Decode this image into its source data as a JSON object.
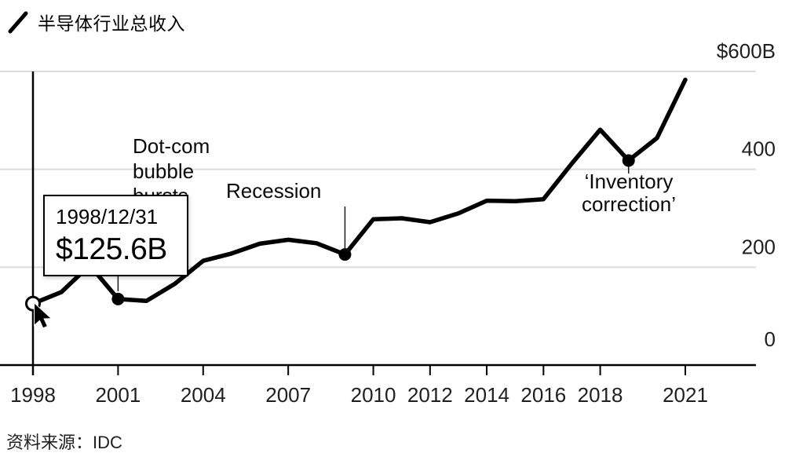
{
  "header": {
    "title": "半导体行业总收入"
  },
  "source": {
    "label": "资料来源：IDC"
  },
  "tooltip": {
    "date": "1998/12/31",
    "value": "$125.6B"
  },
  "chart_data": {
    "type": "line",
    "title": "半导体行业总收入",
    "legend_position": "top-left",
    "grid": true,
    "series": [
      {
        "name": "半导体行业总收入",
        "x": [
          1998,
          1999,
          2000,
          2001,
          2002,
          2003,
          2004,
          2005,
          2006,
          2007,
          2008,
          2009,
          2010,
          2011,
          2012,
          2013,
          2014,
          2015,
          2016,
          2017,
          2018,
          2019,
          2020,
          2021
        ],
        "values": [
          125.6,
          149,
          204,
          135,
          131,
          166,
          213,
          228,
          248,
          256,
          249,
          226,
          298,
          300,
          292,
          310,
          336,
          335,
          339,
          412,
          481,
          418,
          464,
          583
        ]
      }
    ],
    "x_axis": {
      "ticks": [
        1998,
        2001,
        2004,
        2007,
        2010,
        2012,
        2014,
        2016,
        2018,
        2021
      ]
    },
    "y_axis": {
      "min": 0,
      "max": 600,
      "ticks": [
        {
          "value": 600,
          "label": "$600B"
        },
        {
          "value": 400,
          "label": "400"
        },
        {
          "value": 200,
          "label": "200"
        },
        {
          "value": 0,
          "label": "0"
        }
      ]
    },
    "annotations": [
      {
        "id": "dotcom",
        "year": 2001,
        "value": 135,
        "lines": [
          "Dot-com",
          "bubble",
          "bursts"
        ]
      },
      {
        "id": "recession",
        "year": 2009,
        "value": 226,
        "lines": [
          "Recession"
        ]
      },
      {
        "id": "inventory",
        "year": 2019,
        "value": 418,
        "lines": [
          "‘Inventory",
          "correction’"
        ]
      }
    ],
    "hover_point": {
      "year": 1998,
      "date": "1998/12/31",
      "value": 125.6,
      "display": "$125.6B"
    },
    "colors": {
      "line": "#000000",
      "grid": "#dcdcdc",
      "axis": "#000000",
      "annotation": "#1a1a1a"
    }
  }
}
